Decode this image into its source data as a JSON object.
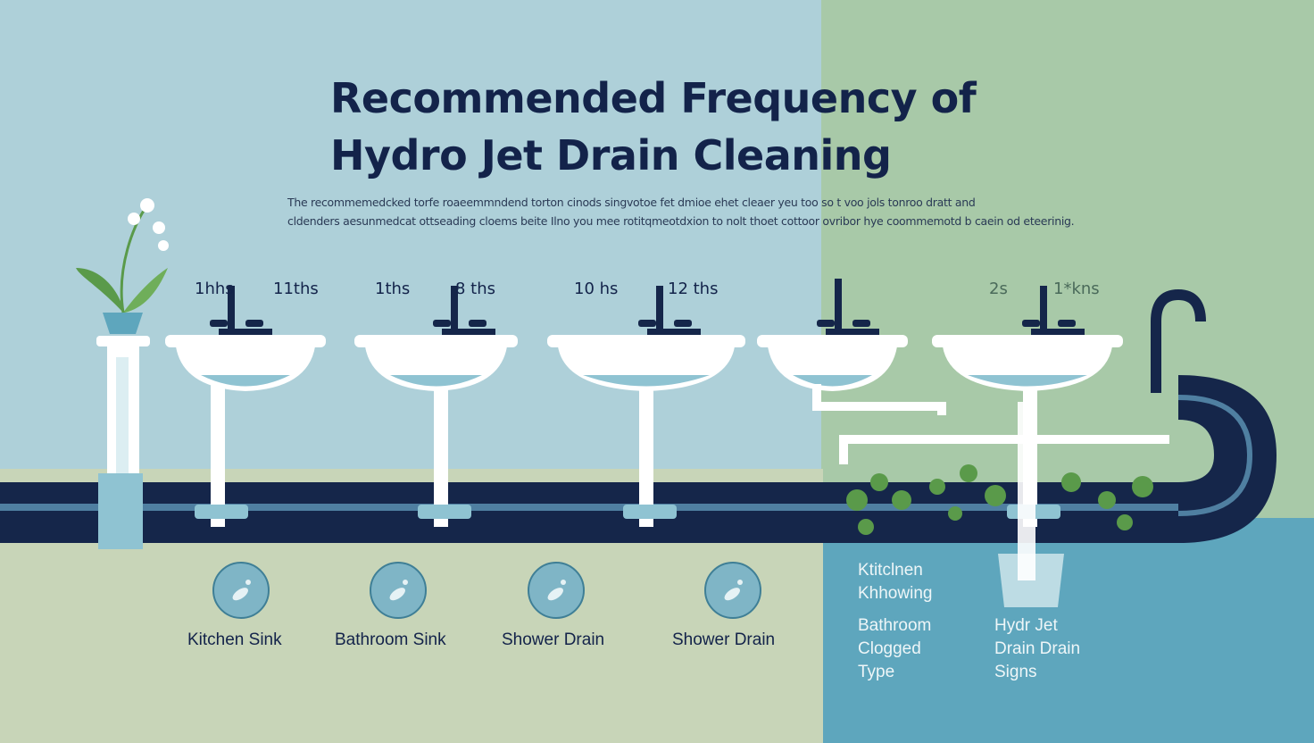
{
  "title": {
    "line1": "Recommended Frequency of",
    "line2": "Hydro Jet Drain Cleaning"
  },
  "description": {
    "line1": "The recommemedcked torfe roaeemmndend torton cinods singvotoe fet dmioe ehet cleaer yeu too so t voo jols tonroo dratt and",
    "line2": "cldenders aesunmedcat ottseading cloems beite Ilno you mee rotitqmeotdxion to nolt thoet cottoor ovribor hye coommemotd b caein od eteerinig."
  },
  "sinks": [
    {
      "freq_left": "1hhs",
      "freq_right": "11ths"
    },
    {
      "freq_left": "1ths",
      "freq_right": "8 ths"
    },
    {
      "freq_left": "10 hs",
      "freq_right": "12 ths"
    },
    {
      "freq_left": "",
      "freq_right": ""
    },
    {
      "freq_left": "2s",
      "freq_right": "1*kns"
    }
  ],
  "categories": [
    {
      "label": "Kitchen Sink",
      "icon": "grease-icon"
    },
    {
      "label": "Bathroom Sink",
      "icon": "hair-clog-icon"
    },
    {
      "label": "Shower Drain",
      "icon": "droplet-icon"
    },
    {
      "label": "Shower Drain",
      "icon": "particles-icon"
    }
  ],
  "right_panel": {
    "col1": [
      "Ktitclnen",
      "Khhowing",
      "Bathroom",
      "Clogged",
      "Type"
    ],
    "col2": [
      "Hydr Jet",
      "Drain Drain",
      "Signs"
    ]
  },
  "colors": {
    "sky": "#aed0d9",
    "green_panel": "#a8c9a8",
    "ground": "#c8d5b8",
    "teal_panel": "#5ea6bd",
    "pipe": "#15264a",
    "water": "#8fc3d2"
  }
}
